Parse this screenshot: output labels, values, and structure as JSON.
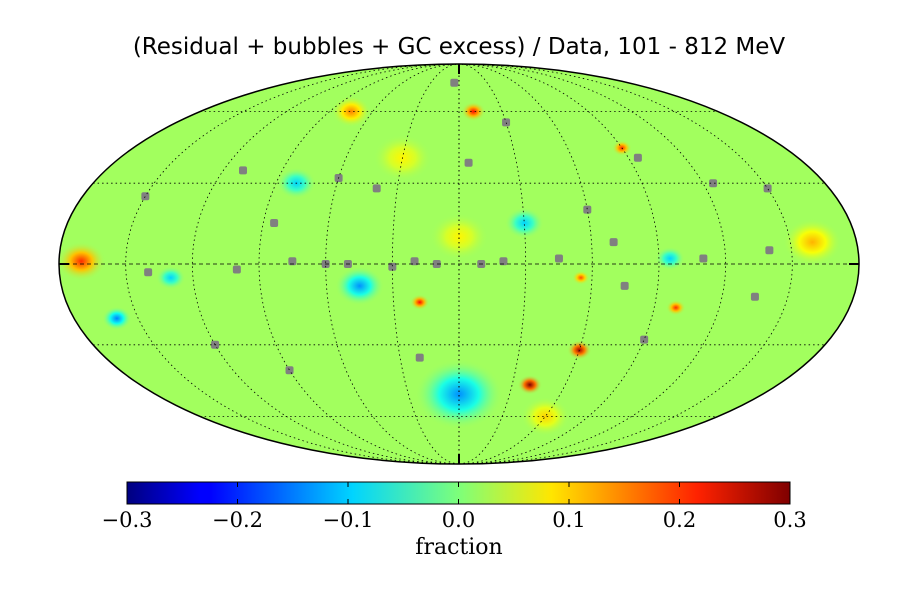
{
  "chart_data": {
    "type": "heatmap",
    "title": "(Residual + bubbles + GC excess) / Data, 101 - 812 MeV",
    "projection": "mollweide",
    "colormap": "jet",
    "colorbar": {
      "label": "fraction",
      "range": [
        -0.3,
        0.3
      ],
      "ticks": [
        -0.3,
        -0.2,
        -0.1,
        0.0,
        0.1,
        0.2,
        0.3
      ],
      "tick_labels": [
        "−0.3",
        "−0.2",
        "−0.1",
        "0.0",
        "0.1",
        "0.2",
        "0.3"
      ],
      "placement": "bottom"
    },
    "graticule": {
      "longitudes_deg": [
        -150,
        -120,
        -90,
        -60,
        -30,
        0,
        30,
        60,
        90,
        120,
        150
      ],
      "latitudes_deg": [
        -60,
        -30,
        0,
        30,
        60
      ]
    },
    "background_value": 0.02,
    "features": [
      {
        "lon": -60,
        "lat": -32,
        "value": 0.28,
        "sigma": 2.5
      },
      {
        "lon": -40,
        "lat": -46,
        "value": 0.3,
        "sigma": 2.5
      },
      {
        "lon": -100,
        "lat": -16,
        "value": 0.2,
        "sigma": 2.0
      },
      {
        "lon": 18,
        "lat": -14,
        "value": 0.22,
        "sigma": 2.0
      },
      {
        "lon": -55,
        "lat": -5,
        "value": 0.18,
        "sigma": 1.8
      },
      {
        "lon": 170,
        "lat": 1,
        "value": 0.2,
        "sigma": 5.0
      },
      {
        "lon": -10,
        "lat": 60,
        "value": 0.22,
        "sigma": 2.5
      },
      {
        "lon": -90,
        "lat": 44,
        "value": 0.2,
        "sigma": 2.0
      },
      {
        "lon": 75,
        "lat": 60,
        "value": 0.15,
        "sigma": 4.0
      },
      {
        "lon": -160,
        "lat": 8,
        "value": 0.12,
        "sigma": 6.0
      },
      {
        "lon": 0,
        "lat": -50,
        "value": -0.14,
        "sigma": 9.0
      },
      {
        "lon": 45,
        "lat": -8,
        "value": -0.14,
        "sigma": 5.0
      },
      {
        "lon": 160,
        "lat": -20,
        "value": -0.15,
        "sigma": 3.0
      },
      {
        "lon": 80,
        "lat": 30,
        "value": -0.1,
        "sigma": 4.0
      },
      {
        "lon": -95,
        "lat": 2,
        "value": -0.1,
        "sigma": 3.0
      },
      {
        "lon": -30,
        "lat": 15,
        "value": -0.1,
        "sigma": 4.0
      },
      {
        "lon": 130,
        "lat": -5,
        "value": -0.1,
        "sigma": 3.0
      },
      {
        "lon": 0,
        "lat": 10,
        "value": 0.08,
        "sigma": 6.0
      },
      {
        "lon": 30,
        "lat": 40,
        "value": 0.08,
        "sigma": 6.0
      },
      {
        "lon": -60,
        "lat": -60,
        "value": 0.1,
        "sigma": 5.0
      }
    ],
    "masked_sources": [
      {
        "lon": -70,
        "lat": 8
      },
      {
        "lon": -45,
        "lat": 2
      },
      {
        "lon": -20,
        "lat": 1
      },
      {
        "lon": -10,
        "lat": 0
      },
      {
        "lon": 10,
        "lat": 0
      },
      {
        "lon": 20,
        "lat": 1
      },
      {
        "lon": 30,
        "lat": -1
      },
      {
        "lon": 50,
        "lat": 0
      },
      {
        "lon": 60,
        "lat": 0
      },
      {
        "lon": 75,
        "lat": 1
      },
      {
        "lon": 100,
        "lat": -2
      },
      {
        "lon": -110,
        "lat": 2
      },
      {
        "lon": -140,
        "lat": 5
      },
      {
        "lon": 140,
        "lat": -3
      },
      {
        "lon": -5,
        "lat": 38
      },
      {
        "lon": 40,
        "lat": 28
      },
      {
        "lon": 60,
        "lat": 32
      },
      {
        "lon": -95,
        "lat": 40
      },
      {
        "lon": -125,
        "lat": 30
      },
      {
        "lon": -135,
        "lat": -12
      },
      {
        "lon": -90,
        "lat": -28
      },
      {
        "lon": -75,
        "lat": -8
      },
      {
        "lon": 85,
        "lat": 15
      },
      {
        "lon": 110,
        "lat": 35
      },
      {
        "lon": -30,
        "lat": 55
      },
      {
        "lon": 5,
        "lat": 75
      },
      {
        "lon": 90,
        "lat": -40
      },
      {
        "lon": 120,
        "lat": -30
      },
      {
        "lon": 150,
        "lat": 25
      },
      {
        "lon": -150,
        "lat": 28
      },
      {
        "lon": 20,
        "lat": -35
      },
      {
        "lon": -60,
        "lat": 20
      }
    ]
  }
}
